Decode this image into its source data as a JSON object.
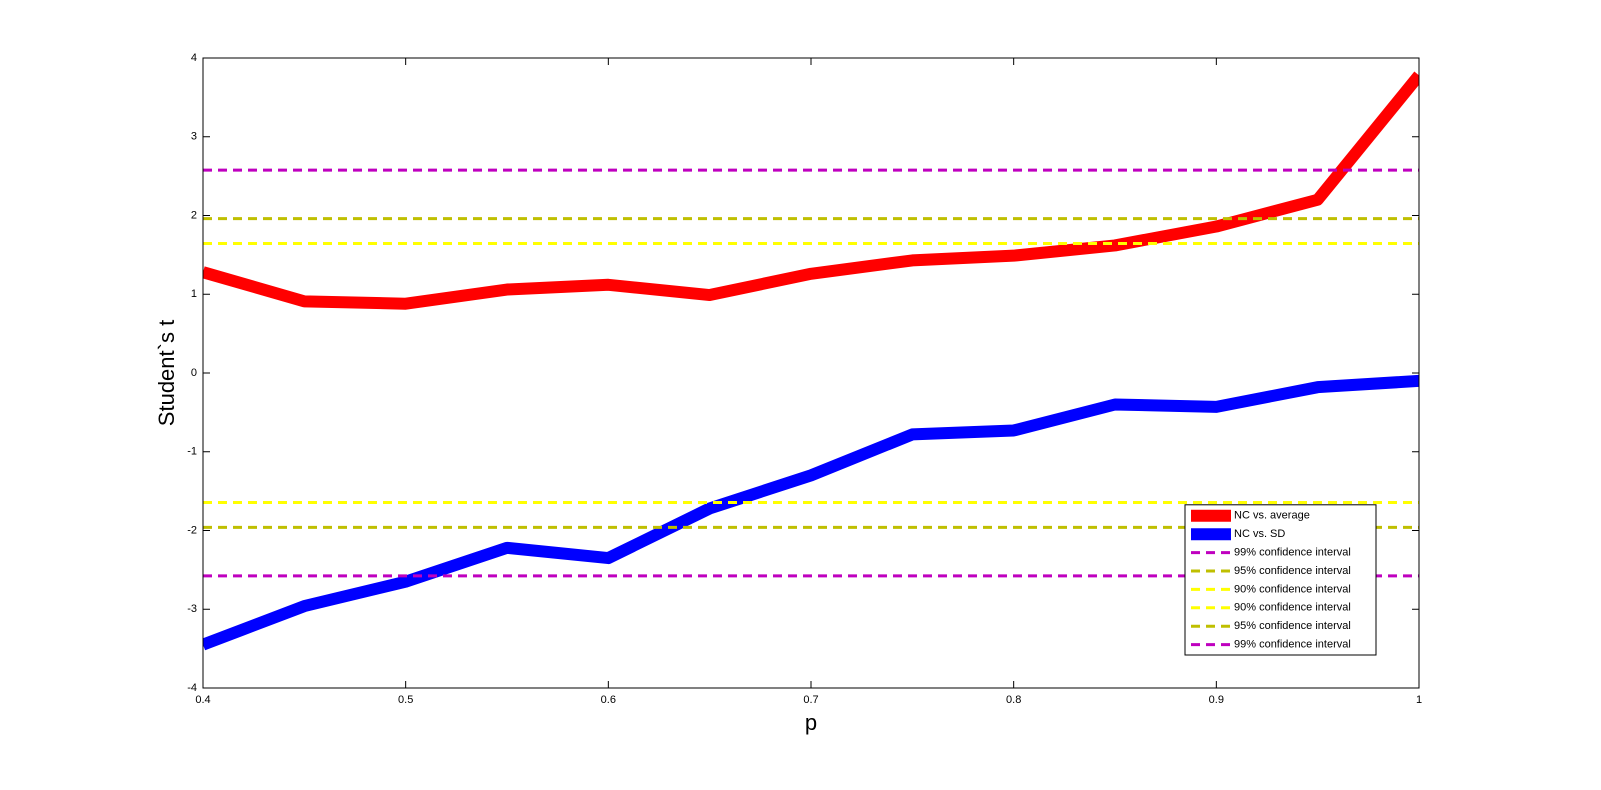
{
  "chart_data": {
    "type": "line",
    "xlabel": "p",
    "ylabel": "Student`s t",
    "xlim": [
      0.4,
      1
    ],
    "xticks": [
      0.4,
      0.5,
      0.6,
      0.7,
      0.8,
      0.9,
      1
    ],
    "ylim": [
      -4,
      4
    ],
    "yticks": [
      -4,
      -3,
      -2,
      -1,
      0,
      1,
      2,
      3,
      4
    ],
    "legend": "southeast",
    "x": [
      0.4,
      0.45,
      0.5,
      0.55,
      0.6,
      0.65,
      0.7,
      0.75,
      0.8,
      0.85,
      0.9,
      0.95,
      1
    ],
    "series": [
      {
        "name": "NC vs. average",
        "color": "#ff0000",
        "linestyle": "solid",
        "values": [
          1.28,
          0.91,
          0.88,
          1.06,
          1.12,
          0.99,
          1.26,
          1.43,
          1.49,
          1.62,
          1.86,
          2.2,
          3.78
        ]
      },
      {
        "name": "NC vs. SD",
        "color": "#0000ff",
        "linestyle": "solid",
        "values": [
          -3.45,
          -2.96,
          -2.65,
          -2.22,
          -2.35,
          -1.72,
          -1.3,
          -0.78,
          -0.73,
          -0.4,
          -0.43,
          -0.18,
          -0.1
        ]
      },
      {
        "name": "99% confidence interval",
        "color": "#bf00bf",
        "linestyle": "dashed",
        "x": [
          0.4,
          1
        ],
        "values": [
          2.576,
          2.576
        ]
      },
      {
        "name": "95% confidence interval",
        "color": "#bfbf00",
        "linestyle": "dashed",
        "x": [
          0.4,
          1
        ],
        "values": [
          1.96,
          1.96
        ]
      },
      {
        "name": "90% confidence interval",
        "color": "#ffff00",
        "linestyle": "dashed",
        "x": [
          0.4,
          1
        ],
        "values": [
          1.645,
          1.645
        ]
      },
      {
        "name": "90% confidence interval",
        "color": "#ffff00",
        "linestyle": "dashed",
        "x": [
          0.4,
          1
        ],
        "values": [
          -1.645,
          -1.645
        ]
      },
      {
        "name": "95% confidence interval",
        "color": "#bfbf00",
        "linestyle": "dashed",
        "x": [
          0.4,
          1
        ],
        "values": [
          -1.96,
          -1.96
        ]
      },
      {
        "name": "99% confidence interval",
        "color": "#bf00bf",
        "linestyle": "dashed",
        "x": [
          0.4,
          1
        ],
        "values": [
          -2.576,
          -2.576
        ]
      }
    ]
  }
}
